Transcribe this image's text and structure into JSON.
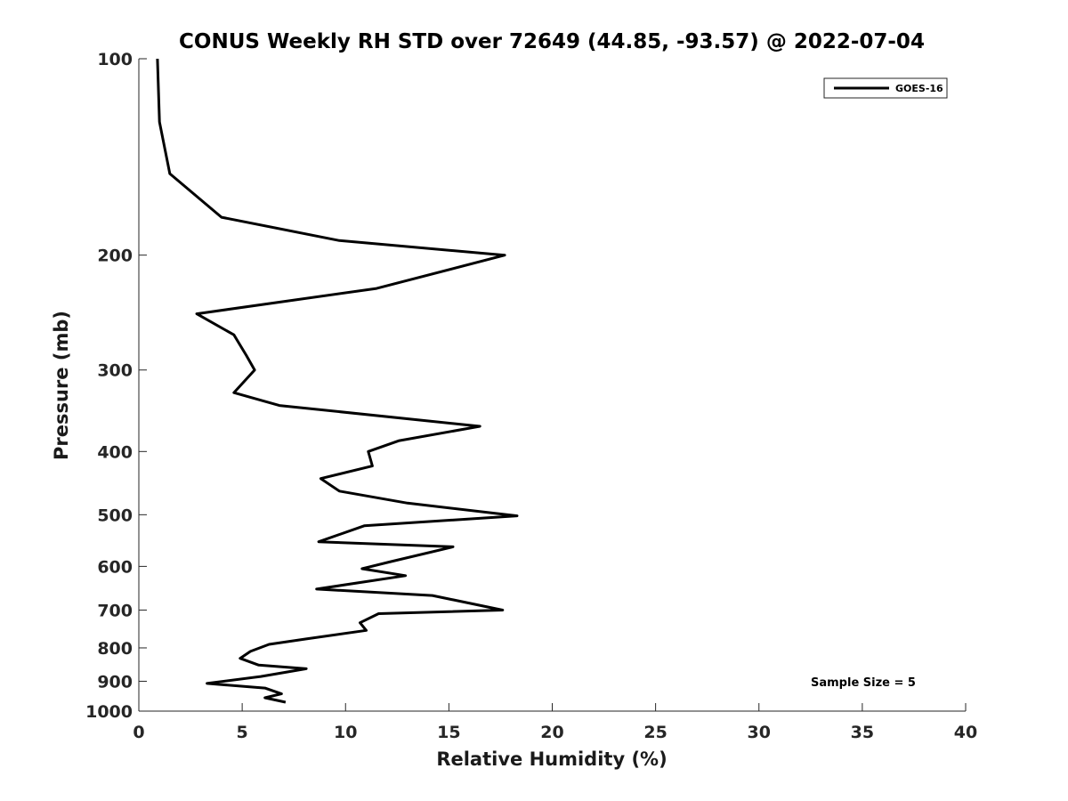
{
  "chart_data": {
    "type": "line",
    "title": "CONUS Weekly RH STD over 72649 (44.85, -93.57) @ 2022-07-04",
    "xlabel": "Relative Humidity (%)",
    "ylabel": "Pressure (mb)",
    "xlim": [
      0,
      40
    ],
    "ylim": [
      100,
      1000
    ],
    "y_scale": "log",
    "y_reversed": true,
    "x_ticks": [
      "0",
      "5",
      "10",
      "15",
      "20",
      "25",
      "30",
      "35",
      "40"
    ],
    "y_ticks": [
      "100",
      "200",
      "300",
      "400",
      "500",
      "600",
      "700",
      "800",
      "900",
      "1000"
    ],
    "grid": false,
    "legend": {
      "position": "top-right",
      "entries": [
        "GOES-16"
      ]
    },
    "annotations": [
      "Sample Size = 5"
    ],
    "series": [
      {
        "name": "GOES-16",
        "color": "#000000",
        "points": [
          [
            0.9,
            100
          ],
          [
            1.0,
            125
          ],
          [
            1.5,
            150
          ],
          [
            4.0,
            175
          ],
          [
            9.7,
            190
          ],
          [
            17.7,
            200
          ],
          [
            11.5,
            225
          ],
          [
            2.8,
            246
          ],
          [
            4.6,
            265
          ],
          [
            5.2,
            285
          ],
          [
            5.6,
            300
          ],
          [
            4.6,
            325
          ],
          [
            6.8,
            340
          ],
          [
            16.5,
            366
          ],
          [
            12.6,
            385
          ],
          [
            11.1,
            400
          ],
          [
            11.3,
            421
          ],
          [
            8.8,
            440
          ],
          [
            9.7,
            460
          ],
          [
            13.0,
            480
          ],
          [
            18.3,
            502
          ],
          [
            10.9,
            520
          ],
          [
            8.7,
            550
          ],
          [
            15.2,
            560
          ],
          [
            12.2,
            590
          ],
          [
            10.8,
            605
          ],
          [
            12.9,
            620
          ],
          [
            8.6,
            650
          ],
          [
            14.2,
            665
          ],
          [
            17.6,
            700
          ],
          [
            11.6,
            709
          ],
          [
            10.7,
            732
          ],
          [
            11.0,
            752
          ],
          [
            8.1,
            775
          ],
          [
            6.3,
            790
          ],
          [
            5.4,
            810
          ],
          [
            4.9,
            830
          ],
          [
            5.8,
            850
          ],
          [
            8.1,
            861
          ],
          [
            5.9,
            885
          ],
          [
            3.3,
            907
          ],
          [
            6.1,
            922
          ],
          [
            6.9,
            941
          ],
          [
            6.1,
            954
          ],
          [
            7.1,
            969
          ]
        ]
      }
    ]
  }
}
